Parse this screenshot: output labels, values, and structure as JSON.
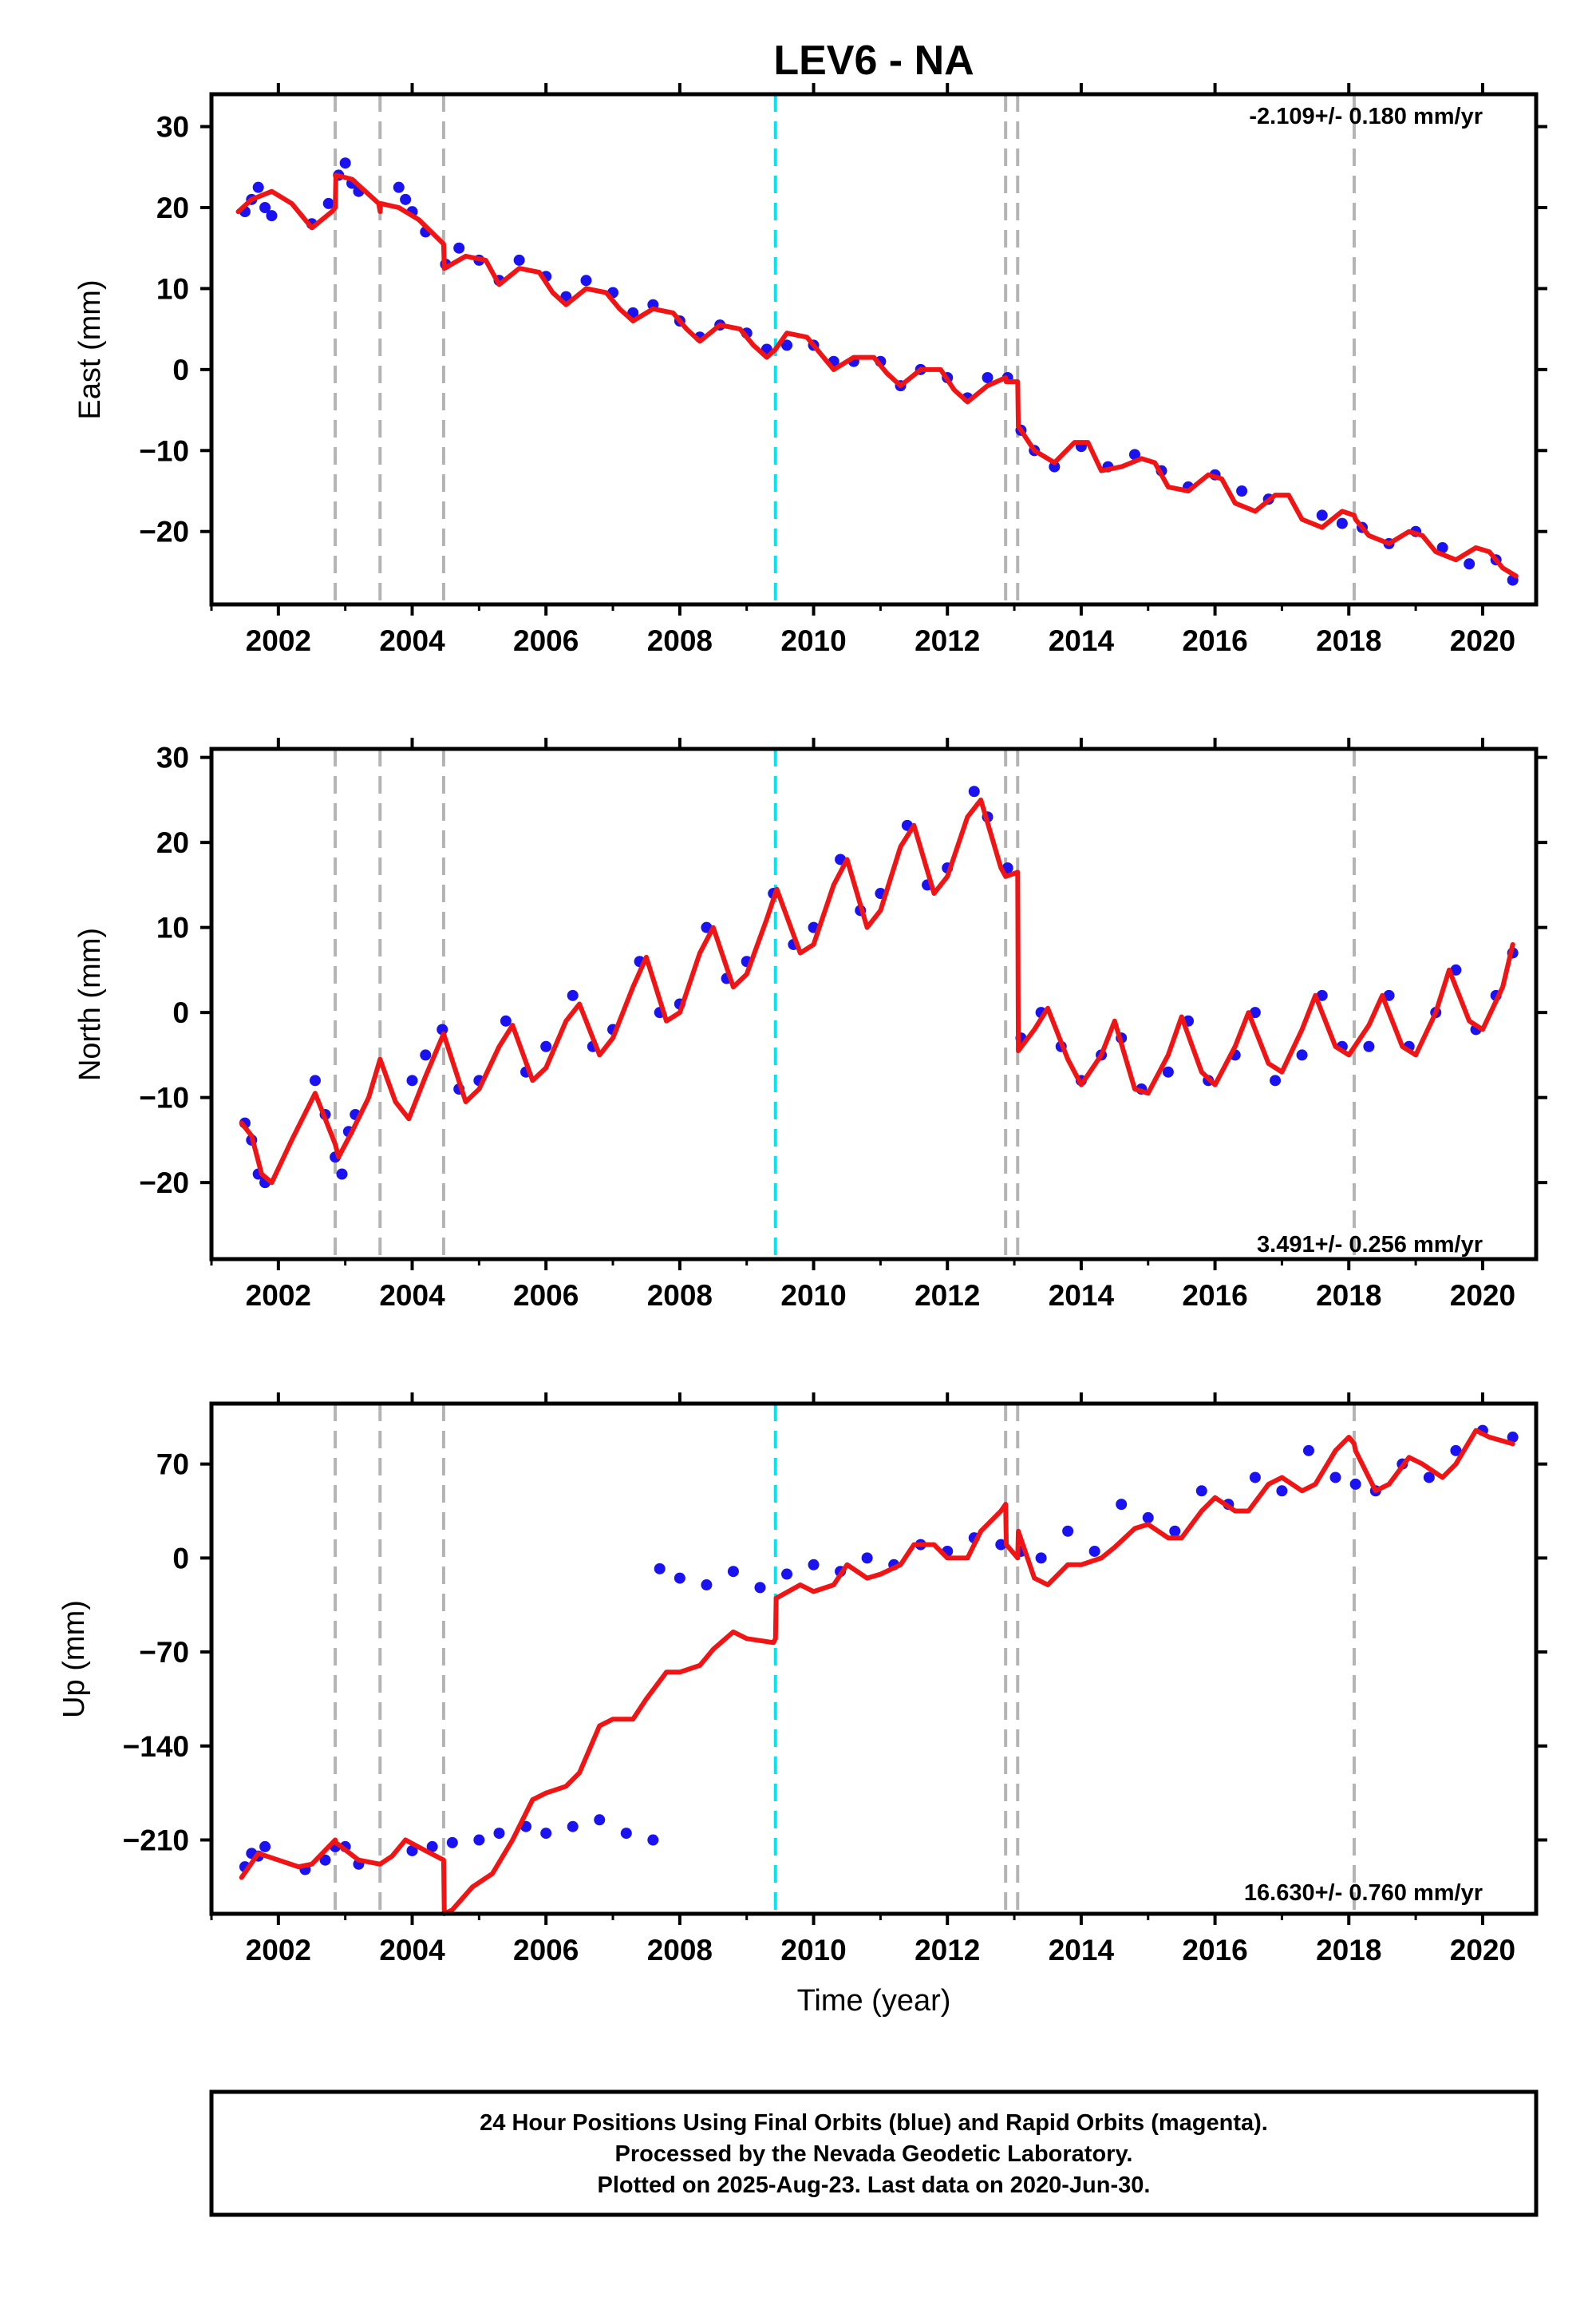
{
  "title": "LEV6 - NA",
  "colors": {
    "data": "#1a12f0",
    "model": "#f01414",
    "cyan_line": "#00e5ee",
    "gray_line": "#b4b4b4",
    "frame": "#000000"
  },
  "event_lines": {
    "gray": [
      2002.85,
      2003.52,
      2004.47,
      2012.87,
      2013.05,
      2018.08
    ],
    "cyan": [
      2009.43
    ]
  },
  "x_range": [
    2001.0,
    2020.8
  ],
  "x_ticks": [
    "2002",
    "2004",
    "2006",
    "2008",
    "2010",
    "2012",
    "2014",
    "2016",
    "2018",
    "2020"
  ],
  "x_tick_values": [
    2002,
    2004,
    2006,
    2008,
    2010,
    2012,
    2014,
    2016,
    2018,
    2020
  ],
  "xlabel": "Time (year)",
  "footer": {
    "line1": "24 Hour Positions Using Final Orbits (blue) and Rapid Orbits (magenta).",
    "line2": "Processed by the Nevada Geodetic Laboratory.",
    "line3": "Plotted on 2025-Aug-23. Last data on 2020-Jun-30."
  },
  "chart_data": [
    {
      "type": "scatter",
      "panel": "east",
      "ylabel": "East (mm)",
      "rate": "-2.109+/- 0.180 mm/yr",
      "ylim": [
        -29,
        34
      ],
      "y_ticks": [
        "30",
        "20",
        "10",
        "0",
        "−10",
        "−20"
      ],
      "y_tick_values": [
        30,
        20,
        10,
        0,
        -10,
        -20
      ],
      "series": [
        {
          "name": "blue",
          "kind": "scatter",
          "x": [
            2001.5,
            2001.6,
            2001.7,
            2001.8,
            2001.9,
            2002.5,
            2002.75,
            2002.9,
            2003.0,
            2003.1,
            2003.2,
            2003.8,
            2003.9,
            2004.0,
            2004.2,
            2004.5,
            2004.7,
            2005.0,
            2005.3,
            2005.6,
            2006.0,
            2006.3,
            2006.6,
            2007.0,
            2007.3,
            2007.6,
            2008.0,
            2008.3,
            2008.6,
            2009.0,
            2009.3,
            2009.6,
            2010.0,
            2010.3,
            2010.6,
            2011.0,
            2011.3,
            2011.6,
            2012.0,
            2012.3,
            2012.6,
            2012.9,
            2013.1,
            2013.3,
            2013.6,
            2014.0,
            2014.4,
            2014.8,
            2015.2,
            2015.6,
            2016.0,
            2016.4,
            2016.8,
            2017.6,
            2017.9,
            2018.2,
            2018.6,
            2019.0,
            2019.4,
            2019.8,
            2020.2,
            2020.45
          ],
          "y": [
            19.5,
            21.0,
            22.5,
            20.0,
            19.0,
            18.0,
            20.5,
            24.0,
            25.5,
            23.0,
            22.0,
            22.5,
            21.0,
            19.5,
            17.0,
            13.0,
            15.0,
            13.5,
            11.0,
            13.5,
            11.5,
            9.0,
            11.0,
            9.5,
            7.0,
            8.0,
            6.0,
            4.0,
            5.5,
            4.5,
            2.5,
            3.0,
            3.0,
            1.0,
            1.0,
            1.0,
            -2.0,
            0.0,
            -1.0,
            -3.5,
            -1.0,
            -1.0,
            -7.5,
            -10.0,
            -12.0,
            -9.5,
            -12.0,
            -10.5,
            -12.5,
            -14.5,
            -13.0,
            -15.0,
            -16.0,
            -18.0,
            -19.0,
            -19.5,
            -21.5,
            -20.0,
            -22.0,
            -24.0,
            -23.5,
            -26.0
          ]
        },
        {
          "name": "red",
          "kind": "line",
          "x": [
            2001.4,
            2001.6,
            2001.9,
            2002.2,
            2002.5,
            2002.8,
            2002.85,
            2002.86,
            2003.1,
            2003.5,
            2003.52,
            2003.53,
            2003.8,
            2004.1,
            2004.47,
            2004.48,
            2004.8,
            2005.1,
            2005.3,
            2005.6,
            2005.9,
            2006.1,
            2006.3,
            2006.6,
            2006.9,
            2007.1,
            2007.3,
            2007.6,
            2007.9,
            2008.1,
            2008.3,
            2008.6,
            2008.9,
            2009.1,
            2009.3,
            2009.43,
            2009.6,
            2009.9,
            2010.1,
            2010.3,
            2010.6,
            2010.9,
            2011.1,
            2011.3,
            2011.6,
            2011.9,
            2012.1,
            2012.3,
            2012.6,
            2012.87,
            2012.88,
            2013.05,
            2013.06,
            2013.3,
            2013.6,
            2013.9,
            2014.1,
            2014.3,
            2014.6,
            2014.9,
            2015.1,
            2015.3,
            2015.6,
            2015.9,
            2016.1,
            2016.3,
            2016.6,
            2016.9,
            2017.1,
            2017.3,
            2017.6,
            2017.9,
            2018.08,
            2018.1,
            2018.3,
            2018.6,
            2018.9,
            2019.1,
            2019.3,
            2019.6,
            2019.9,
            2020.1,
            2020.3,
            2020.5
          ],
          "y": [
            19.5,
            21.0,
            22.0,
            20.5,
            17.5,
            19.5,
            20.0,
            24.0,
            23.5,
            20.5,
            19.5,
            20.5,
            20.0,
            18.5,
            15.5,
            12.5,
            14.0,
            13.5,
            10.5,
            12.5,
            12.0,
            9.5,
            8.0,
            10.0,
            9.5,
            7.5,
            6.0,
            7.5,
            7.0,
            5.0,
            3.5,
            5.5,
            5.0,
            3.0,
            1.5,
            2.5,
            4.5,
            4.0,
            2.0,
            0.0,
            1.5,
            1.5,
            -0.5,
            -2.0,
            0.0,
            0.0,
            -2.5,
            -4.0,
            -2.0,
            -1.0,
            -1.5,
            -1.5,
            -7.0,
            -10.0,
            -11.5,
            -9.0,
            -9.0,
            -12.5,
            -12.0,
            -11.0,
            -11.5,
            -14.5,
            -15.0,
            -13.0,
            -13.5,
            -16.5,
            -17.5,
            -15.5,
            -15.5,
            -18.5,
            -19.5,
            -17.5,
            -18.0,
            -18.5,
            -20.5,
            -21.5,
            -20.0,
            -20.5,
            -22.5,
            -23.5,
            -22.0,
            -22.5,
            -24.5,
            -25.5
          ]
        }
      ]
    },
    {
      "type": "scatter",
      "panel": "north",
      "ylabel": "North (mm)",
      "rate": "3.491+/- 0.256 mm/yr",
      "ylim": [
        -29,
        31
      ],
      "y_ticks": [
        "30",
        "20",
        "10",
        "0",
        "−10",
        "−20"
      ],
      "y_tick_values": [
        30,
        20,
        10,
        0,
        -10,
        -20
      ],
      "series": [
        {
          "name": "blue",
          "kind": "scatter",
          "x": [
            2001.5,
            2001.6,
            2001.7,
            2001.8,
            2002.55,
            2002.7,
            2002.85,
            2002.95,
            2003.05,
            2003.15,
            2004.0,
            2004.2,
            2004.45,
            2004.7,
            2005.0,
            2005.4,
            2005.7,
            2006.0,
            2006.4,
            2006.7,
            2007.0,
            2007.4,
            2007.7,
            2008.0,
            2008.4,
            2008.7,
            2009.0,
            2009.4,
            2009.7,
            2010.0,
            2010.4,
            2010.7,
            2011.0,
            2011.4,
            2011.7,
            2012.0,
            2012.4,
            2012.6,
            2012.9,
            2013.1,
            2013.4,
            2013.7,
            2014.0,
            2014.3,
            2014.6,
            2014.9,
            2015.3,
            2015.6,
            2015.9,
            2016.3,
            2016.6,
            2016.9,
            2017.3,
            2017.6,
            2017.9,
            2018.3,
            2018.6,
            2018.9,
            2019.3,
            2019.6,
            2019.9,
            2020.2,
            2020.45
          ],
          "y": [
            -13.0,
            -15.0,
            -19.0,
            -20.0,
            -8.0,
            -12.0,
            -17.0,
            -19.0,
            -14.0,
            -12.0,
            -8.0,
            -5.0,
            -2.0,
            -9.0,
            -8.0,
            -1.0,
            -7.0,
            -4.0,
            2.0,
            -4.0,
            -2.0,
            6.0,
            0.0,
            1.0,
            10.0,
            4.0,
            6.0,
            14.0,
            8.0,
            10.0,
            18.0,
            12.0,
            14.0,
            22.0,
            15.0,
            17.0,
            26.0,
            23.0,
            17.0,
            -3.0,
            0.0,
            -4.0,
            -8.0,
            -5.0,
            -3.0,
            -9.0,
            -7.0,
            -1.0,
            -8.0,
            -5.0,
            0.0,
            -8.0,
            -5.0,
            2.0,
            -4.0,
            -4.0,
            2.0,
            -4.0,
            0.0,
            5.0,
            -2.0,
            2.0,
            7.0
          ]
        },
        {
          "name": "red",
          "kind": "line",
          "x": [
            2001.45,
            2001.6,
            2001.75,
            2001.9,
            2002.2,
            2002.55,
            2002.85,
            2002.9,
            2003.1,
            2003.35,
            2003.52,
            2003.75,
            2003.95,
            2004.2,
            2004.47,
            2004.8,
            2005.0,
            2005.3,
            2005.5,
            2005.8,
            2006.0,
            2006.3,
            2006.5,
            2006.8,
            2007.0,
            2007.3,
            2007.5,
            2007.8,
            2008.0,
            2008.3,
            2008.5,
            2008.8,
            2009.0,
            2009.3,
            2009.45,
            2009.8,
            2010.0,
            2010.3,
            2010.5,
            2010.8,
            2011.0,
            2011.3,
            2011.5,
            2011.8,
            2012.0,
            2012.3,
            2012.5,
            2012.8,
            2012.87,
            2013.05,
            2013.06,
            2013.3,
            2013.5,
            2013.8,
            2014.0,
            2014.3,
            2014.5,
            2014.8,
            2015.0,
            2015.3,
            2015.5,
            2015.8,
            2016.0,
            2016.3,
            2016.5,
            2016.8,
            2017.0,
            2017.3,
            2017.5,
            2017.8,
            2018.0,
            2018.3,
            2018.5,
            2018.8,
            2019.0,
            2019.3,
            2019.5,
            2019.8,
            2020.0,
            2020.3,
            2020.45
          ],
          "y": [
            -13.0,
            -14.5,
            -19.0,
            -20.0,
            -15.0,
            -9.5,
            -15.5,
            -17.0,
            -14.0,
            -10.0,
            -5.5,
            -10.5,
            -12.5,
            -7.5,
            -2.5,
            -10.5,
            -9.0,
            -4.0,
            -1.5,
            -8.0,
            -6.5,
            -1.0,
            1.0,
            -5.0,
            -3.0,
            3.0,
            6.5,
            -1.0,
            0.0,
            7.0,
            10.0,
            3.0,
            4.5,
            11.0,
            14.5,
            7.0,
            8.0,
            15.0,
            18.0,
            10.0,
            12.0,
            19.5,
            22.0,
            14.0,
            16.0,
            23.0,
            25.0,
            17.0,
            16.0,
            16.5,
            -4.5,
            -2.0,
            0.5,
            -5.5,
            -8.5,
            -5.0,
            -1.0,
            -9.0,
            -9.5,
            -5.0,
            -0.5,
            -7.0,
            -8.5,
            -4.0,
            0.0,
            -6.0,
            -7.0,
            -2.0,
            2.0,
            -4.0,
            -5.0,
            -1.5,
            2.0,
            -4.0,
            -5.0,
            0.0,
            5.0,
            -1.0,
            -2.0,
            3.0,
            8.0
          ]
        }
      ]
    },
    {
      "type": "scatter",
      "panel": "up",
      "ylabel": "Up (mm)",
      "rate": "16.630+/- 0.760 mm/yr",
      "ylim": [
        -265,
        115
      ],
      "y_ticks": [
        "70",
        "0",
        "−70",
        "−140",
        "−210"
      ],
      "y_tick_values": [
        70,
        0,
        -70,
        -140,
        -210
      ],
      "series": [
        {
          "name": "blue",
          "kind": "scatter",
          "x": [
            2001.5,
            2001.6,
            2001.7,
            2001.8,
            2002.4,
            2002.7,
            2002.85,
            2003.0,
            2003.2,
            2004.0,
            2004.3,
            2004.6,
            2005.0,
            2005.3,
            2005.7,
            2006.0,
            2006.4,
            2006.8,
            2007.2,
            2007.6,
            2007.7,
            2008.0,
            2008.4,
            2008.8,
            2009.2,
            2009.6,
            2010.0,
            2010.4,
            2010.8,
            2011.2,
            2011.6,
            2012.0,
            2012.4,
            2012.8,
            2013.1,
            2013.4,
            2013.8,
            2014.2,
            2014.6,
            2015.0,
            2015.4,
            2015.8,
            2016.2,
            2016.6,
            2017.0,
            2017.4,
            2017.8,
            2018.1,
            2018.4,
            2018.8,
            2019.2,
            2019.6,
            2020.0,
            2020.45
          ],
          "y": [
            -230,
            -220,
            -222,
            -215,
            -232,
            -225,
            -215,
            -215,
            -228,
            -218,
            -215,
            -212,
            -210,
            -205,
            -200,
            -205,
            -200,
            -195,
            -205,
            -210,
            -8,
            -15,
            -20,
            -10,
            -22,
            -12,
            -5,
            -10,
            0,
            -5,
            10,
            5,
            15,
            10,
            5,
            0,
            20,
            5,
            40,
            30,
            20,
            50,
            40,
            60,
            50,
            80,
            60,
            55,
            50,
            70,
            60,
            80,
            95,
            90
          ]
        },
        {
          "name": "red",
          "kind": "line",
          "x": [
            2001.45,
            2001.7,
            2002.0,
            2002.3,
            2002.5,
            2002.85,
            2002.86,
            2003.2,
            2003.52,
            2003.7,
            2003.9,
            2004.2,
            2004.47,
            2004.48,
            2004.6,
            2004.9,
            2005.2,
            2005.5,
            2005.8,
            2006.0,
            2006.3,
            2006.5,
            2006.8,
            2007.0,
            2007.3,
            2007.5,
            2007.8,
            2008.0,
            2008.3,
            2008.5,
            2008.8,
            2009.0,
            2009.4,
            2009.43,
            2009.44,
            2009.8,
            2010.0,
            2010.3,
            2010.5,
            2010.8,
            2011.0,
            2011.3,
            2011.5,
            2011.8,
            2012.0,
            2012.3,
            2012.5,
            2012.8,
            2012.87,
            2012.88,
            2013.05,
            2013.06,
            2013.3,
            2013.5,
            2013.8,
            2014.0,
            2014.3,
            2014.5,
            2014.8,
            2015.0,
            2015.3,
            2015.5,
            2015.8,
            2016.0,
            2016.3,
            2016.5,
            2016.8,
            2017.0,
            2017.3,
            2017.5,
            2017.8,
            2018.0,
            2018.08,
            2018.1,
            2018.4,
            2018.6,
            2018.9,
            2019.1,
            2019.4,
            2019.6,
            2019.9,
            2020.1,
            2020.45
          ],
          "y": [
            -238,
            -220,
            -225,
            -230,
            -228,
            -210,
            -212,
            -225,
            -228,
            -222,
            -210,
            -218,
            -225,
            -268,
            -262,
            -245,
            -235,
            -210,
            -180,
            -175,
            -170,
            -160,
            -125,
            -120,
            -120,
            -105,
            -85,
            -85,
            -80,
            -68,
            -55,
            -60,
            -63,
            -60,
            -30,
            -20,
            -25,
            -20,
            -5,
            -15,
            -12,
            -5,
            10,
            10,
            0,
            0,
            20,
            35,
            40,
            10,
            0,
            20,
            -15,
            -20,
            -5,
            -5,
            0,
            8,
            22,
            25,
            15,
            15,
            35,
            45,
            35,
            35,
            55,
            60,
            50,
            55,
            80,
            90,
            85,
            80,
            50,
            55,
            75,
            70,
            60,
            70,
            95,
            90,
            85
          ]
        }
      ]
    }
  ]
}
